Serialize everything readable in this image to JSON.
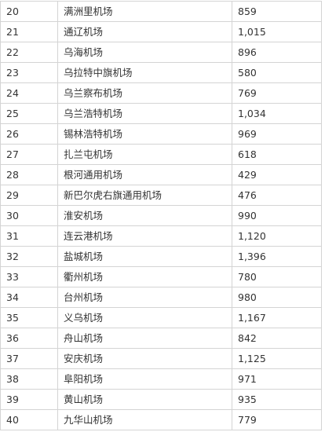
{
  "table": {
    "rows": [
      {
        "rank": "20",
        "airport": "满洲里机场",
        "value": "859"
      },
      {
        "rank": "21",
        "airport": "通辽机场",
        "value": "1,015"
      },
      {
        "rank": "22",
        "airport": "乌海机场",
        "value": "896"
      },
      {
        "rank": "23",
        "airport": "乌拉特中旗机场",
        "value": "580"
      },
      {
        "rank": "24",
        "airport": "乌兰察布机场",
        "value": "769"
      },
      {
        "rank": "25",
        "airport": "乌兰浩特机场",
        "value": "1,034"
      },
      {
        "rank": "26",
        "airport": "锡林浩特机场",
        "value": "969"
      },
      {
        "rank": "27",
        "airport": "扎兰屯机场",
        "value": "618"
      },
      {
        "rank": "28",
        "airport": "根河通用机场",
        "value": "429"
      },
      {
        "rank": "29",
        "airport": "新巴尔虎右旗通用机场",
        "value": "476"
      },
      {
        "rank": "30",
        "airport": "淮安机场",
        "value": "990"
      },
      {
        "rank": "31",
        "airport": "连云港机场",
        "value": "1,120"
      },
      {
        "rank": "32",
        "airport": "盐城机场",
        "value": "1,396"
      },
      {
        "rank": "33",
        "airport": "衢州机场",
        "value": "780"
      },
      {
        "rank": "34",
        "airport": "台州机场",
        "value": "980"
      },
      {
        "rank": "35",
        "airport": "义乌机场",
        "value": "1,167"
      },
      {
        "rank": "36",
        "airport": "舟山机场",
        "value": "842"
      },
      {
        "rank": "37",
        "airport": "安庆机场",
        "value": "1,125"
      },
      {
        "rank": "38",
        "airport": "阜阳机场",
        "value": "971"
      },
      {
        "rank": "39",
        "airport": "黄山机场",
        "value": "935"
      },
      {
        "rank": "40",
        "airport": "九华山机场",
        "value": "779"
      }
    ]
  }
}
